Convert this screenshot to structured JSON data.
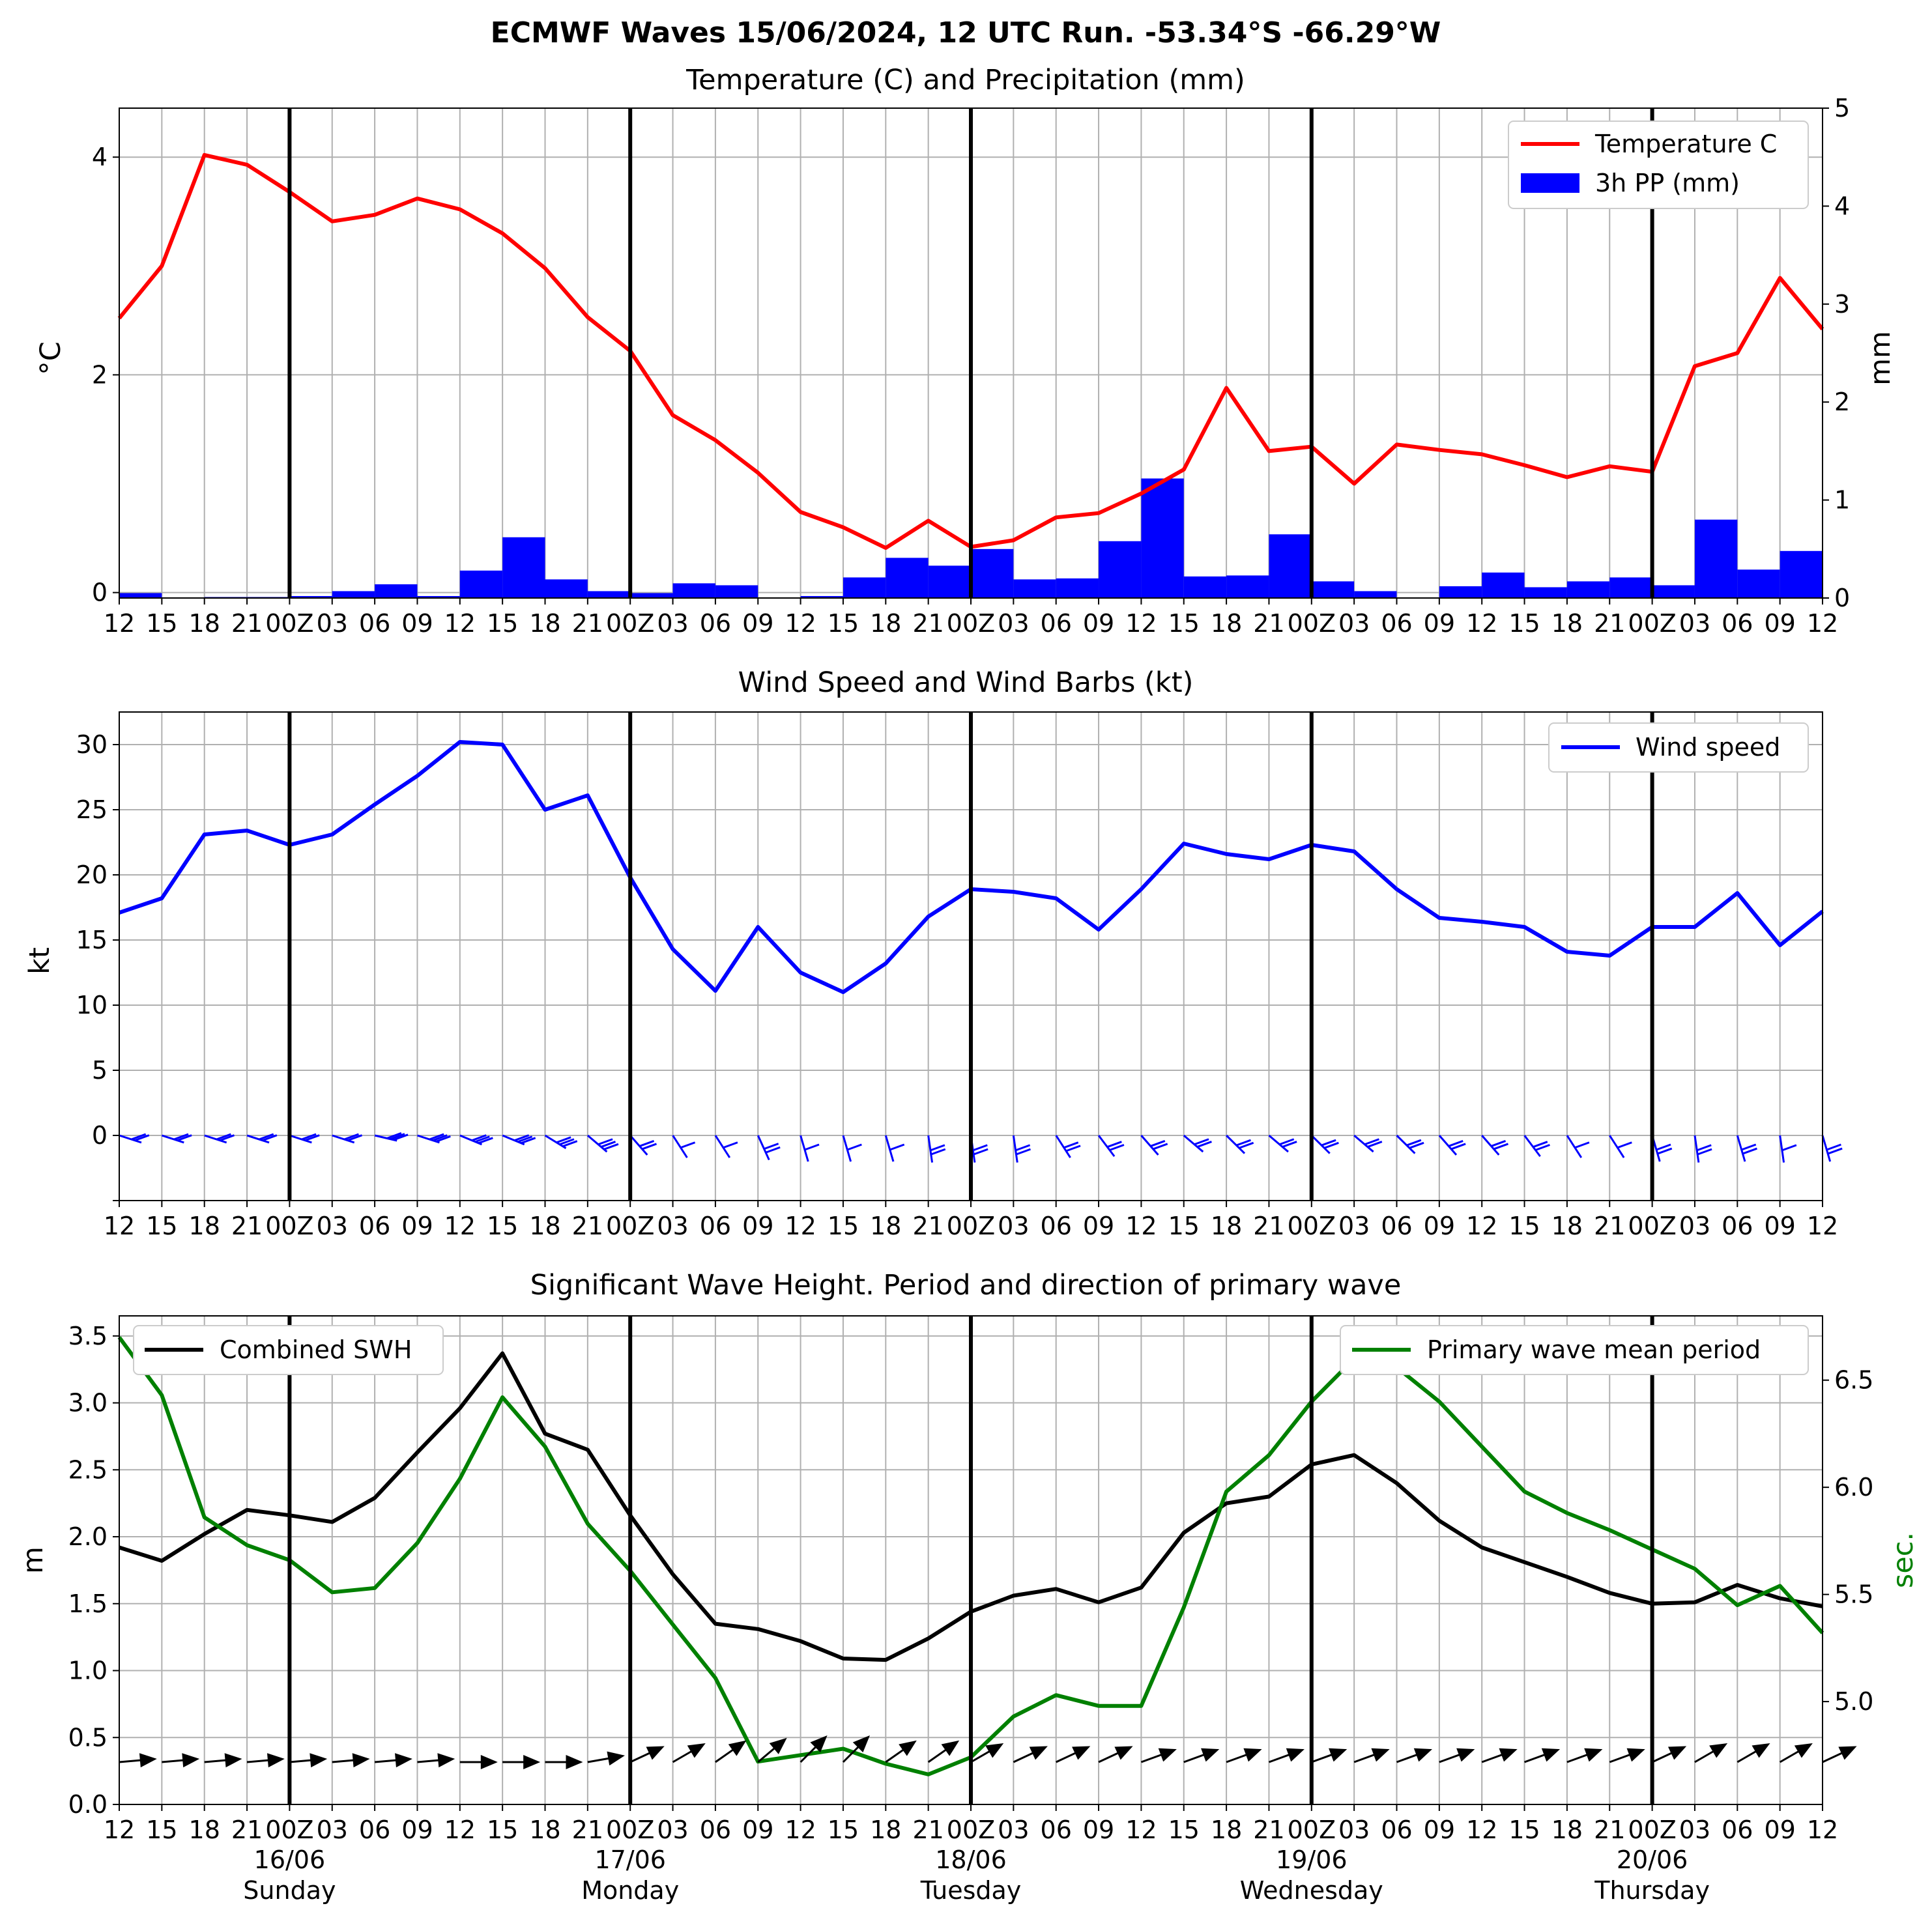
{
  "suptitle": "ECMWF Waves 15/06/2024, 12 UTC Run. -53.34°S -66.29°W",
  "x_tick_labels": [
    "12",
    "15",
    "18",
    "21",
    "00Z",
    "03",
    "06",
    "09",
    "12",
    "15",
    "18",
    "21",
    "00Z",
    "03",
    "06",
    "09",
    "12",
    "15",
    "18",
    "21",
    "00Z",
    "03",
    "06",
    "09",
    "12",
    "15",
    "18",
    "21",
    "00Z",
    "03",
    "06",
    "09",
    "12",
    "15",
    "18",
    "21",
    "00Z",
    "03",
    "06",
    "09",
    "12"
  ],
  "day_labels": [
    {
      "date": "16/06",
      "day": "Sunday"
    },
    {
      "date": "17/06",
      "day": "Monday"
    },
    {
      "date": "18/06",
      "day": "Tuesday"
    },
    {
      "date": "19/06",
      "day": "Wednesday"
    },
    {
      "date": "20/06",
      "day": "Thursday"
    }
  ],
  "colors": {
    "temperature": "#ff0000",
    "precipitation": "#0000ff",
    "wind": "#0000ff",
    "swh": "#000000",
    "period": "#008000",
    "grid": "#b0b0b0"
  },
  "chart_data": [
    {
      "type": "line",
      "title": "Temperature (C) and Precipitation (mm)",
      "ylabel": "$^\\circ$C",
      "y2label": "mm",
      "ylim": [
        -0.05,
        4.45
      ],
      "y2lim": [
        0,
        5
      ],
      "yticks": [
        0,
        2,
        4
      ],
      "y2ticks": [
        0,
        1,
        2,
        3,
        4,
        5
      ],
      "grid": true,
      "legend_position": "top-right",
      "series": [
        {
          "name": "Temperature C",
          "axis": "left",
          "type": "line",
          "values": [
            2.52,
            3.0,
            4.02,
            3.93,
            3.68,
            3.41,
            3.47,
            3.62,
            3.52,
            3.3,
            2.98,
            2.53,
            2.22,
            1.63,
            1.4,
            1.1,
            0.74,
            0.6,
            0.41,
            0.66,
            0.42,
            0.48,
            0.69,
            0.73,
            0.91,
            1.13,
            1.88,
            1.3,
            1.34,
            1.0,
            1.36,
            1.31,
            1.27,
            1.17,
            1.06,
            1.16,
            1.11,
            2.08,
            2.2,
            2.89,
            2.42
          ]
        },
        {
          "name": "3h PP (mm)",
          "axis": "right",
          "type": "bar",
          "values": [
            0.05,
            0.0,
            0.01,
            0.01,
            0.02,
            0.07,
            0.14,
            0.02,
            0.28,
            0.62,
            0.19,
            0.07,
            0.05,
            0.15,
            0.13,
            0.0,
            0.02,
            0.21,
            0.41,
            0.33,
            0.5,
            0.19,
            0.2,
            0.58,
            1.22,
            0.22,
            0.23,
            0.65,
            0.17,
            0.07,
            0.0,
            0.12,
            0.26,
            0.11,
            0.17,
            0.21,
            0.13,
            0.8,
            0.29,
            0.48,
            0.0
          ]
        }
      ]
    },
    {
      "type": "line",
      "title": "Wind Speed and Wind Barbs (kt)",
      "ylabel": "kt",
      "ylim": [
        -5,
        32.5
      ],
      "yticks": [
        0,
        5,
        10,
        15,
        20,
        25,
        30
      ],
      "grid": true,
      "legend_position": "top-right",
      "series": [
        {
          "name": "Wind speed",
          "values": [
            17.1,
            18.2,
            23.1,
            23.4,
            22.3,
            23.1,
            25.4,
            27.6,
            30.2,
            30.0,
            25.0,
            26.1,
            19.8,
            14.3,
            11.1,
            16.0,
            12.5,
            11.0,
            13.2,
            16.8,
            18.9,
            18.7,
            18.2,
            15.8,
            18.9,
            22.4,
            21.6,
            21.2,
            22.3,
            21.8,
            18.9,
            16.7,
            16.4,
            16.0,
            14.1,
            13.8,
            16.0,
            16.0,
            18.6,
            14.6,
            17.2
          ]
        }
      ],
      "barbs_from_dir_deg": [
        265,
        265,
        265,
        265,
        265,
        265,
        270,
        275,
        280,
        280,
        290,
        300,
        310,
        320,
        320,
        330,
        340,
        340,
        340,
        350,
        350,
        350,
        320,
        315,
        310,
        300,
        305,
        300,
        305,
        300,
        305,
        310,
        310,
        315,
        320,
        320,
        340,
        350,
        340,
        350,
        340
      ]
    },
    {
      "type": "line",
      "title": "Significant Wave Height. Period and direction of primary wave",
      "ylabel": "m",
      "y2label": "sec.",
      "ylim": [
        0,
        3.65
      ],
      "y2lim": [
        4.52,
        6.8
      ],
      "yticks": [
        0.0,
        0.5,
        1.0,
        1.5,
        2.0,
        2.5,
        3.0,
        3.5
      ],
      "y2ticks": [
        5.0,
        5.5,
        6.0,
        6.5
      ],
      "grid": true,
      "legend_positions": [
        "top-left",
        "top-right"
      ],
      "series": [
        {
          "name": "Combined SWH",
          "axis": "left",
          "values": [
            1.92,
            1.82,
            2.02,
            2.2,
            2.16,
            2.11,
            2.29,
            2.63,
            2.96,
            3.37,
            2.77,
            2.65,
            2.16,
            1.72,
            1.35,
            1.31,
            1.22,
            1.09,
            1.08,
            1.24,
            1.44,
            1.56,
            1.61,
            1.51,
            1.62,
            2.03,
            2.25,
            2.3,
            2.54,
            2.61,
            2.4,
            2.12,
            1.92,
            1.81,
            1.7,
            1.58,
            1.5,
            1.51,
            1.64,
            1.54,
            1.48
          ]
        },
        {
          "name": "Primary wave mean period",
          "axis": "right",
          "values": [
            6.7,
            6.43,
            5.86,
            5.73,
            5.66,
            5.51,
            5.53,
            5.74,
            6.04,
            6.42,
            6.19,
            5.83,
            5.61,
            5.36,
            5.11,
            4.72,
            4.75,
            4.78,
            4.71,
            4.66,
            4.74,
            4.93,
            5.03,
            4.98,
            4.98,
            5.44,
            5.98,
            6.15,
            6.4,
            6.6,
            6.56,
            6.4,
            6.19,
            5.98,
            5.88,
            5.8,
            5.71,
            5.62,
            5.45,
            5.54,
            5.32
          ]
        }
      ],
      "wave_dir_to_deg": [
        85,
        85,
        85,
        85,
        85,
        85,
        85,
        85,
        90,
        90,
        90,
        80,
        65,
        60,
        55,
        50,
        45,
        45,
        55,
        55,
        60,
        65,
        65,
        65,
        70,
        70,
        70,
        70,
        70,
        70,
        70,
        70,
        70,
        70,
        70,
        70,
        65,
        60,
        60,
        60,
        65
      ]
    }
  ]
}
